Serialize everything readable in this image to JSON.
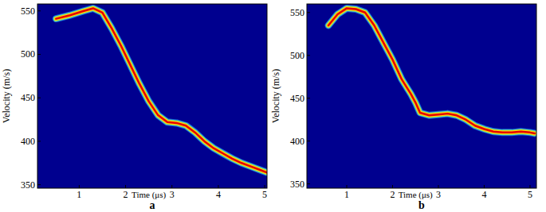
{
  "chart_data": [
    {
      "type": "line",
      "label": "a",
      "x_label": "Time (μs)",
      "y_label": "Velocity (m/s)",
      "color": "#e60000",
      "x": [
        0.5,
        0.8,
        1.1,
        1.3,
        1.5,
        1.7,
        1.9,
        2.1,
        2.3,
        2.5,
        2.7,
        2.9,
        3.1,
        3.3,
        3.5,
        3.7,
        3.9,
        4.1,
        4.3,
        4.5,
        4.7,
        4.9,
        5.05
      ],
      "values": [
        541,
        545,
        550,
        553,
        548,
        530,
        510,
        488,
        466,
        446,
        430,
        422,
        421,
        418,
        410,
        400,
        392,
        386,
        380,
        375,
        371,
        367,
        364
      ],
      "xlim": [
        0.1,
        5.05
      ],
      "ylim": [
        346,
        558
      ],
      "xticks": [
        1,
        2,
        3,
        4,
        5
      ],
      "yticks": [
        350,
        400,
        450,
        500,
        550
      ]
    },
    {
      "type": "line",
      "label": "b",
      "x_label": "Time (μs)",
      "y_label": "Velocity (m/s)",
      "color": "#e60000",
      "x": [
        0.6,
        0.8,
        1.0,
        1.2,
        1.4,
        1.6,
        1.8,
        2.0,
        2.2,
        2.4,
        2.5,
        2.6,
        2.8,
        3.0,
        3.2,
        3.4,
        3.6,
        3.8,
        4.0,
        4.2,
        4.4,
        4.6,
        4.8,
        5.0,
        5.1
      ],
      "values": [
        535,
        548,
        555,
        554,
        550,
        535,
        515,
        495,
        472,
        455,
        445,
        433,
        430,
        431,
        432,
        430,
        425,
        418,
        414,
        411,
        410,
        410,
        411,
        410,
        409
      ],
      "xlim": [
        0.13,
        5.14
      ],
      "ylim": [
        345,
        560
      ],
      "xticks": [
        1,
        2,
        3,
        4,
        5
      ],
      "yticks": [
        350,
        400,
        450,
        500,
        550
      ]
    }
  ]
}
